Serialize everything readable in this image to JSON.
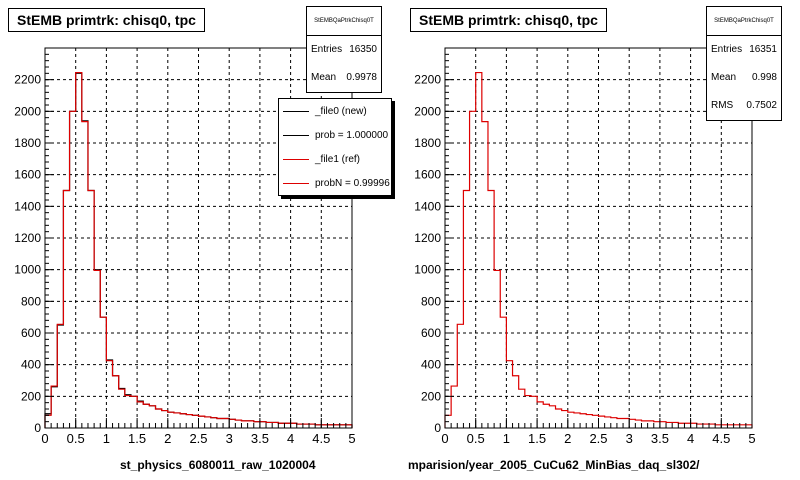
{
  "panels": [
    {
      "title": "StEMB primtrk: chisq0, tpc",
      "stats_name": "StEMBQaPtrkChisq0T",
      "stats": [
        {
          "label": "Entries",
          "value": "16350"
        },
        {
          "label": "Mean",
          "value": "0.9978"
        }
      ],
      "legend": [
        {
          "label": "_file0 (new)",
          "color": "#000000"
        },
        {
          "label": "prob = 1.000000",
          "color": "#000000"
        },
        {
          "label": "_file1 (ref)",
          "color": "#dd0000"
        },
        {
          "label": "probN = 0.99996",
          "color": "#dd0000"
        }
      ],
      "xcaption": "st_physics_6080011_raw_1020004"
    },
    {
      "title": "StEMB primtrk: chisq0, tpc",
      "stats_name": "StEMBQaPtrkChisq0T",
      "stats": [
        {
          "label": "Entries",
          "value": "16351"
        },
        {
          "label": "Mean",
          "value": "0.998"
        },
        {
          "label": "RMS",
          "value": "0.7502"
        }
      ],
      "xcaption": "mparision/year_2005_CuCu62_MinBias_daq_sl302/"
    }
  ],
  "chart_data": [
    {
      "type": "histogram",
      "title": "StEMB primtrk: chisq0, tpc",
      "xlabel": "st_physics_6080011_raw_1020004",
      "xlim": [
        0,
        5
      ],
      "ylim": [
        0,
        2400
      ],
      "xticks": [
        "0",
        "0.5",
        "1",
        "1.5",
        "2",
        "2.5",
        "3",
        "3.5",
        "4",
        "4.5",
        "5"
      ],
      "yticks": [
        "0",
        "200",
        "400",
        "600",
        "800",
        "1000",
        "1200",
        "1400",
        "1600",
        "1800",
        "2000",
        "2200"
      ],
      "grid": true,
      "bin_width": 0.1,
      "series": [
        {
          "name": "_file0 (new)",
          "color": "#000000",
          "values": [
            90,
            260,
            650,
            1500,
            2000,
            2240,
            1940,
            1500,
            1000,
            700,
            430,
            330,
            250,
            210,
            200,
            170,
            150,
            140,
            120,
            110,
            100,
            95,
            90,
            85,
            80,
            75,
            70,
            65,
            60,
            60,
            55,
            50,
            45,
            45,
            40,
            40,
            35,
            35,
            30,
            30,
            30,
            25,
            25,
            25,
            20,
            20,
            20,
            20,
            20,
            20
          ]
        },
        {
          "name": "_file1 (ref)",
          "color": "#dd0000",
          "values": [
            80,
            265,
            655,
            1500,
            2000,
            2245,
            1935,
            1500,
            995,
            700,
            425,
            330,
            245,
            205,
            200,
            165,
            150,
            140,
            120,
            110,
            100,
            95,
            90,
            85,
            80,
            75,
            70,
            65,
            60,
            60,
            55,
            50,
            45,
            45,
            40,
            40,
            35,
            35,
            30,
            30,
            30,
            25,
            25,
            25,
            20,
            20,
            20,
            20,
            20,
            20
          ]
        }
      ]
    },
    {
      "type": "histogram",
      "title": "StEMB primtrk: chisq0, tpc",
      "xlabel": "mparision/year_2005_CuCu62_MinBias_daq_sl302/",
      "xlim": [
        0,
        5
      ],
      "ylim": [
        0,
        2400
      ],
      "xticks": [
        "0",
        "0.5",
        "1",
        "1.5",
        "2",
        "2.5",
        "3",
        "3.5",
        "4",
        "4.5",
        "5"
      ],
      "yticks": [
        "0",
        "200",
        "400",
        "600",
        "800",
        "1000",
        "1200",
        "1400",
        "1600",
        "1800",
        "2000",
        "2200"
      ],
      "grid": true,
      "bin_width": 0.1,
      "series": [
        {
          "name": "",
          "color": "#dd0000",
          "values": [
            80,
            265,
            655,
            1500,
            2000,
            2245,
            1935,
            1500,
            995,
            700,
            425,
            330,
            245,
            205,
            200,
            165,
            150,
            140,
            120,
            110,
            100,
            95,
            90,
            85,
            80,
            75,
            70,
            65,
            60,
            60,
            55,
            50,
            45,
            45,
            40,
            40,
            35,
            35,
            30,
            30,
            30,
            25,
            25,
            25,
            20,
            20,
            20,
            20,
            20,
            20
          ]
        }
      ]
    }
  ]
}
